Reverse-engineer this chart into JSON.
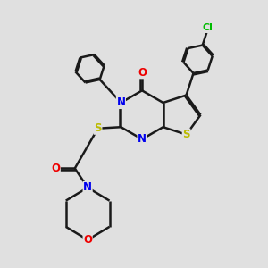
{
  "bg_color": "#e0e0e0",
  "bond_color": "#1a1a1a",
  "bond_width": 1.8,
  "atom_colors": {
    "N": "#0000ee",
    "O": "#ee0000",
    "S": "#bbbb00",
    "Cl": "#00bb00",
    "C": "#1a1a1a"
  },
  "font_size_atom": 8.5,
  "font_size_cl": 8.0
}
